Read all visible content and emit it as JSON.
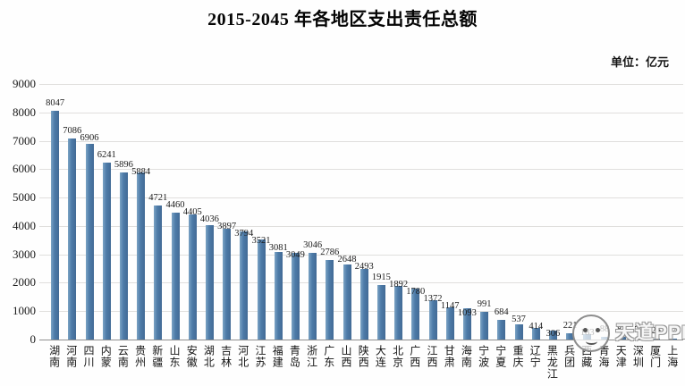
{
  "chart_data": {
    "type": "bar",
    "title": "2015-2045 年各地区支出责任总额",
    "unit_label": "单位：亿元",
    "categories": [
      "湖南",
      "河南",
      "四川",
      "内蒙",
      "云南",
      "贵州",
      "新疆",
      "山东",
      "安徽",
      "湖北",
      "吉林",
      "河北",
      "江苏",
      "福建",
      "青岛",
      "浙江",
      "广东",
      "山西",
      "陕西",
      "大连",
      "北京",
      "广西",
      "江西",
      "甘肃",
      "海南",
      "宁波",
      "宁夏",
      "重庆",
      "辽宁",
      "黑龙江",
      "兵团",
      "西藏",
      "青海",
      "天津",
      "深圳",
      "厦门",
      "上海"
    ],
    "values": [
      8047,
      7086,
      6906,
      6241,
      5896,
      5884,
      4721,
      4460,
      4405,
      4036,
      3897,
      3794,
      3521,
      3081,
      3049,
      3046,
      2786,
      2648,
      2493,
      1915,
      1892,
      1780,
      1372,
      1147,
      1093,
      991,
      684,
      537,
      414,
      306,
      221,
      183,
      88,
      87,
      57,
      26,
      24
    ],
    "xlabel": "",
    "ylabel": "",
    "ylim": [
      0,
      9000
    ],
    "yticks": [
      0,
      1000,
      2000,
      3000,
      4000,
      5000,
      6000,
      7000,
      8000,
      9000
    ],
    "grid": true,
    "legend": "none",
    "value_labels_shown": true,
    "colors": {
      "bar": "#4d7ba8",
      "bar_highlight": "#7ba3c4",
      "bar_shadow": "#426a95",
      "gridline": "#e0dfdd",
      "axis": "#8f8f8f",
      "text": "#1a1a1a",
      "background": "#fefefe"
    }
  },
  "watermark": {
    "text": "天道PPP",
    "logo": "panda-circle-logo"
  }
}
